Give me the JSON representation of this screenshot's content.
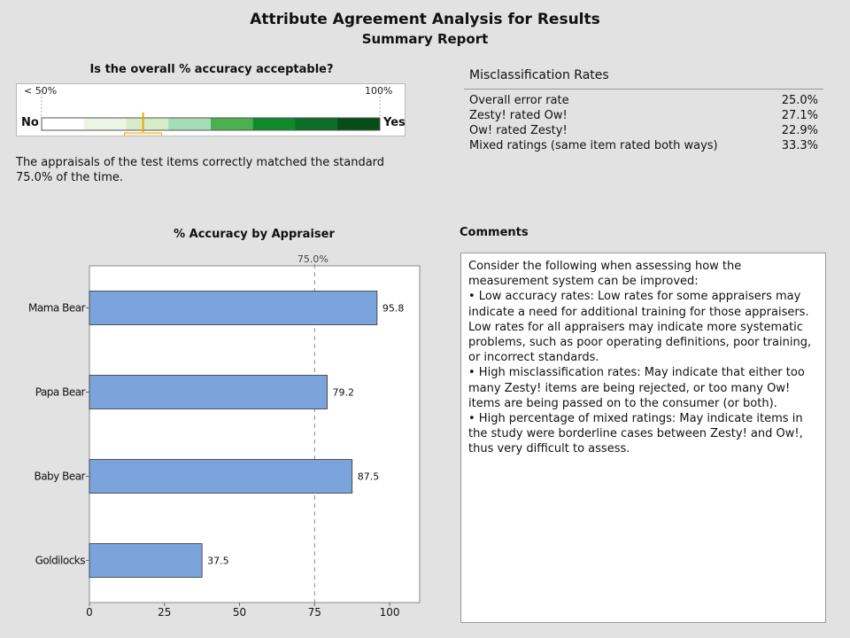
{
  "report": {
    "title": "Attribute Agreement Analysis for Results",
    "subtitle": "Summary Report"
  },
  "accuracy_gauge": {
    "question": "Is the overall % accuracy acceptable?",
    "low_label": "< 50%",
    "high_label": "100%",
    "no_label": "No",
    "yes_label": "Yes",
    "value": 75.0,
    "value_label": "75.0%",
    "scale_min": 50,
    "scale_max": 100,
    "band_colors": [
      "#ffffff",
      "#ecf4e6",
      "#d8ebc8",
      "#a6ddb6",
      "#4caf50",
      "#0e8a2c",
      "#0a6e24",
      "#064d18"
    ],
    "marker_color": "#f0a400",
    "verdict": "The appraisals of the test items correctly matched the standard 75.0% of the time."
  },
  "misclassification": {
    "title": "Misclassification Rates",
    "rows": [
      {
        "label": "Overall error rate",
        "value": "25.0%"
      },
      {
        "label": "Zesty! rated Ow!",
        "value": "27.1%"
      },
      {
        "label": "Ow! rated Zesty!",
        "value": "22.9%"
      },
      {
        "label": "Mixed ratings (same item rated both ways)",
        "value": "33.3%"
      }
    ]
  },
  "chart_data": {
    "type": "bar",
    "orientation": "horizontal",
    "title": "% Accuracy by Appraiser",
    "categories": [
      "Mama Bear",
      "Papa Bear",
      "Baby Bear",
      "Goldilocks"
    ],
    "values": [
      95.8,
      79.2,
      87.5,
      37.5
    ],
    "value_labels": [
      "95.8",
      "79.2",
      "87.5",
      "37.5"
    ],
    "xlim": [
      0,
      110
    ],
    "xticks": [
      0,
      25,
      50,
      75,
      100
    ],
    "xtick_labels": [
      "0",
      "25",
      "50",
      "75",
      "100"
    ],
    "reference_line": {
      "value": 75.0,
      "label": "75.0%"
    },
    "bar_color": "#7ba4dc",
    "grid": false
  },
  "comments": {
    "title": "Comments",
    "paragraphs": [
      "Consider the following when assessing how the measurement system can be improved:",
      "•  Low accuracy rates: Low rates for some appraisers may indicate a need for additional training for those appraisers. Low rates for all appraisers may indicate more systematic problems, such as poor operating definitions, poor training, or incorrect standards.",
      "•  High misclassification rates: May indicate that either too many Zesty! items are being rejected, or too many Ow! items are being passed on to the consumer (or both).",
      "•  High percentage of mixed ratings: May indicate items in the study were borderline cases between Zesty! and Ow!, thus very difficult to assess."
    ]
  }
}
